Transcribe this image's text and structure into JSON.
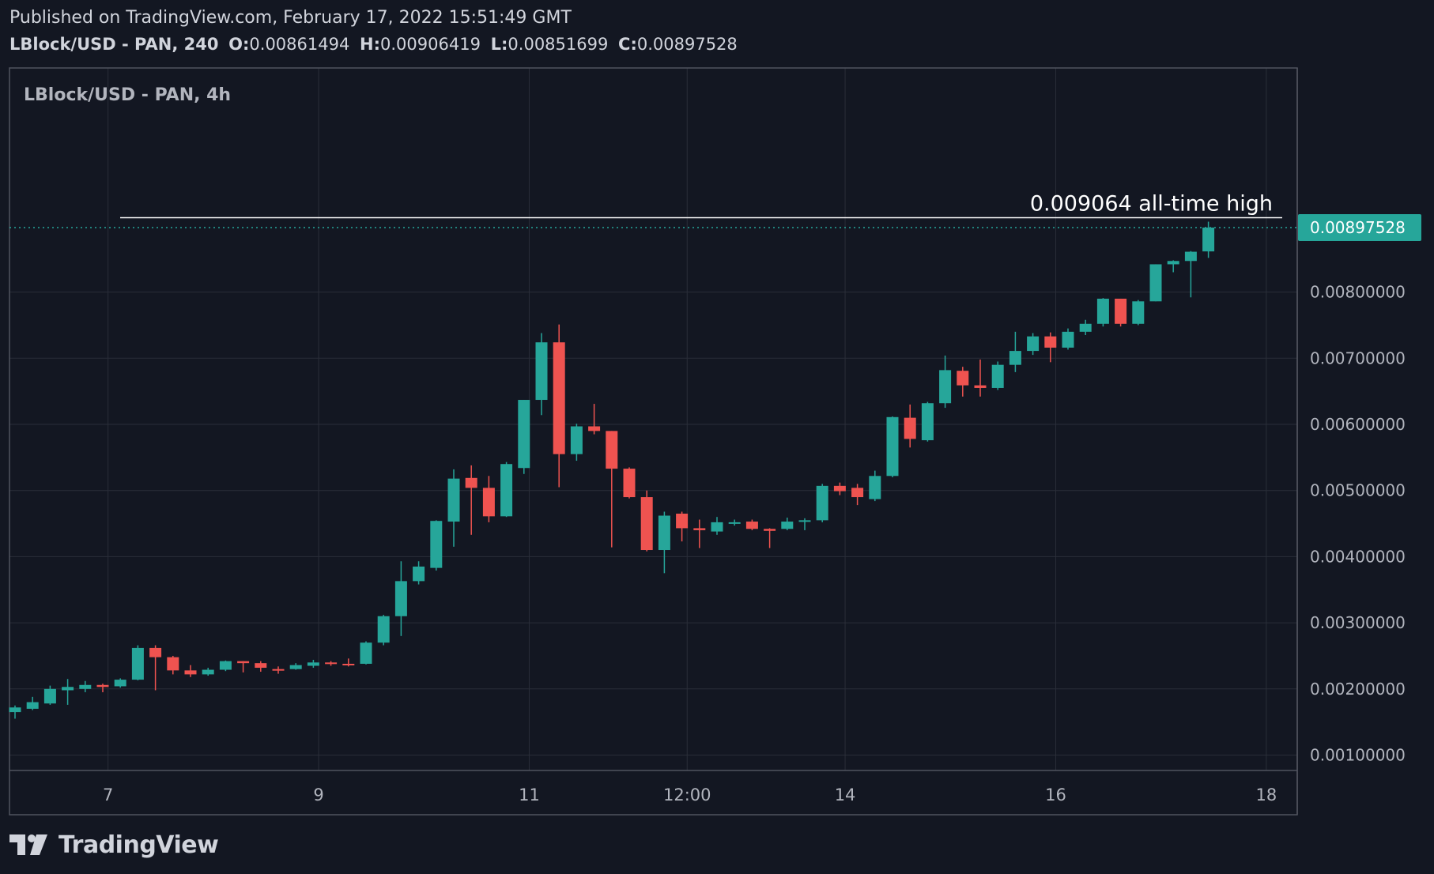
{
  "header": {
    "published": "Published on TradingView.com, February 17, 2022 15:51:49 GMT",
    "symbol_interval": "LBlock/USD - PAN, 240",
    "o_label": "O:",
    "o_value": "0.00861494",
    "h_label": "H:",
    "h_value": "0.00906419",
    "l_label": "L:",
    "l_value": "0.00851699",
    "c_label": "C:",
    "c_value": "0.00897528"
  },
  "brand": {
    "name": "TradingView"
  },
  "colors": {
    "background": "#131722",
    "up": "#26a69a",
    "down": "#ef5350",
    "grid": "#2a2e39",
    "text": "#d1d4dc",
    "axis_text": "#b2b5be"
  },
  "chart_data": {
    "type": "candlestick",
    "title": "LBlock/USD - PAN, 4h",
    "annotation": "0.009064 all-time high",
    "ath_value": 0.009064,
    "last_price": 0.00897528,
    "last_price_label": "0.00897528",
    "ylim": [
      0.0008,
      0.01
    ],
    "y_ticks": [
      {
        "value": 0.008,
        "label": "0.00800000"
      },
      {
        "value": 0.007,
        "label": "0.00700000"
      },
      {
        "value": 0.006,
        "label": "0.00600000"
      },
      {
        "value": 0.005,
        "label": "0.00500000"
      },
      {
        "value": 0.004,
        "label": "0.00400000"
      },
      {
        "value": 0.003,
        "label": "0.00300000"
      },
      {
        "value": 0.002,
        "label": "0.00200000"
      },
      {
        "value": 0.001,
        "label": "0.00100000"
      }
    ],
    "x_ticks": [
      {
        "bar": 5.3,
        "label": "7"
      },
      {
        "bar": 17.3,
        "label": "9"
      },
      {
        "bar": 29.3,
        "label": "11"
      },
      {
        "bar": 38.3,
        "label": "12:00"
      },
      {
        "bar": 47.3,
        "label": "14"
      },
      {
        "bar": 59.3,
        "label": "16"
      },
      {
        "bar": 71.3,
        "label": "18"
      }
    ],
    "candles": [
      {
        "o": 0.00165,
        "h": 0.00175,
        "l": 0.00155,
        "c": 0.00172
      },
      {
        "o": 0.0017,
        "h": 0.00188,
        "l": 0.00168,
        "c": 0.0018
      },
      {
        "o": 0.00178,
        "h": 0.00205,
        "l": 0.00176,
        "c": 0.002
      },
      {
        "o": 0.00198,
        "h": 0.00215,
        "l": 0.00176,
        "c": 0.00203
      },
      {
        "o": 0.002,
        "h": 0.00212,
        "l": 0.00195,
        "c": 0.00206
      },
      {
        "o": 0.00206,
        "h": 0.00208,
        "l": 0.00195,
        "c": 0.00203
      },
      {
        "o": 0.00204,
        "h": 0.00216,
        "l": 0.00202,
        "c": 0.00214
      },
      {
        "o": 0.00214,
        "h": 0.00266,
        "l": 0.00213,
        "c": 0.00262
      },
      {
        "o": 0.00262,
        "h": 0.00266,
        "l": 0.00198,
        "c": 0.00248
      },
      {
        "o": 0.00248,
        "h": 0.0025,
        "l": 0.00222,
        "c": 0.00228
      },
      {
        "o": 0.00228,
        "h": 0.00236,
        "l": 0.00218,
        "c": 0.00222
      },
      {
        "o": 0.00222,
        "h": 0.00232,
        "l": 0.0022,
        "c": 0.00229
      },
      {
        "o": 0.00229,
        "h": 0.00243,
        "l": 0.00227,
        "c": 0.00242
      },
      {
        "o": 0.00242,
        "h": 0.00242,
        "l": 0.00225,
        "c": 0.00239
      },
      {
        "o": 0.00239,
        "h": 0.00242,
        "l": 0.00226,
        "c": 0.00232
      },
      {
        "o": 0.0023,
        "h": 0.00234,
        "l": 0.00223,
        "c": 0.00228
      },
      {
        "o": 0.0023,
        "h": 0.00239,
        "l": 0.00229,
        "c": 0.00236
      },
      {
        "o": 0.00235,
        "h": 0.00244,
        "l": 0.00232,
        "c": 0.0024
      },
      {
        "o": 0.0024,
        "h": 0.00242,
        "l": 0.00235,
        "c": 0.00238
      },
      {
        "o": 0.00238,
        "h": 0.00246,
        "l": 0.00234,
        "c": 0.00237
      },
      {
        "o": 0.00238,
        "h": 0.00272,
        "l": 0.00237,
        "c": 0.0027
      },
      {
        "o": 0.0027,
        "h": 0.00312,
        "l": 0.00266,
        "c": 0.0031
      },
      {
        "o": 0.0031,
        "h": 0.00393,
        "l": 0.0028,
        "c": 0.00363
      },
      {
        "o": 0.00363,
        "h": 0.00393,
        "l": 0.00358,
        "c": 0.00385
      },
      {
        "o": 0.00383,
        "h": 0.00455,
        "l": 0.00379,
        "c": 0.00454
      },
      {
        "o": 0.00453,
        "h": 0.00532,
        "l": 0.00415,
        "c": 0.00518
      },
      {
        "o": 0.00519,
        "h": 0.00538,
        "l": 0.00433,
        "c": 0.00504
      },
      {
        "o": 0.00504,
        "h": 0.00522,
        "l": 0.00452,
        "c": 0.00461
      },
      {
        "o": 0.00461,
        "h": 0.00543,
        "l": 0.0046,
        "c": 0.0054
      },
      {
        "o": 0.00534,
        "h": 0.00637,
        "l": 0.00525,
        "c": 0.00637
      },
      {
        "o": 0.00637,
        "h": 0.00738,
        "l": 0.00614,
        "c": 0.00724
      },
      {
        "o": 0.00724,
        "h": 0.00751,
        "l": 0.00505,
        "c": 0.00555
      },
      {
        "o": 0.00555,
        "h": 0.00601,
        "l": 0.00545,
        "c": 0.00597
      },
      {
        "o": 0.00597,
        "h": 0.00631,
        "l": 0.00585,
        "c": 0.0059
      },
      {
        "o": 0.0059,
        "h": 0.0059,
        "l": 0.00414,
        "c": 0.00533
      },
      {
        "o": 0.00533,
        "h": 0.00535,
        "l": 0.00488,
        "c": 0.0049
      },
      {
        "o": 0.0049,
        "h": 0.005,
        "l": 0.00408,
        "c": 0.0041
      },
      {
        "o": 0.0041,
        "h": 0.00468,
        "l": 0.00375,
        "c": 0.00462
      },
      {
        "o": 0.00465,
        "h": 0.00468,
        "l": 0.00423,
        "c": 0.00443
      },
      {
        "o": 0.00443,
        "h": 0.00456,
        "l": 0.00413,
        "c": 0.0044
      },
      {
        "o": 0.00438,
        "h": 0.0046,
        "l": 0.00433,
        "c": 0.00452
      },
      {
        "o": 0.0045,
        "h": 0.00456,
        "l": 0.00447,
        "c": 0.00452
      },
      {
        "o": 0.00453,
        "h": 0.00456,
        "l": 0.0044,
        "c": 0.00442
      },
      {
        "o": 0.00442,
        "h": 0.00443,
        "l": 0.00413,
        "c": 0.00439
      },
      {
        "o": 0.00442,
        "h": 0.00459,
        "l": 0.0044,
        "c": 0.00453
      },
      {
        "o": 0.00453,
        "h": 0.00458,
        "l": 0.0044,
        "c": 0.00455
      },
      {
        "o": 0.00455,
        "h": 0.0051,
        "l": 0.00452,
        "c": 0.00507
      },
      {
        "o": 0.00507,
        "h": 0.00512,
        "l": 0.00493,
        "c": 0.00499
      },
      {
        "o": 0.00504,
        "h": 0.0051,
        "l": 0.00478,
        "c": 0.0049
      },
      {
        "o": 0.00487,
        "h": 0.0053,
        "l": 0.00484,
        "c": 0.00522
      },
      {
        "o": 0.00522,
        "h": 0.00612,
        "l": 0.0052,
        "c": 0.00611
      },
      {
        "o": 0.0061,
        "h": 0.0063,
        "l": 0.00565,
        "c": 0.00578
      },
      {
        "o": 0.00576,
        "h": 0.00634,
        "l": 0.00574,
        "c": 0.00632
      },
      {
        "o": 0.00632,
        "h": 0.00704,
        "l": 0.00625,
        "c": 0.00682
      },
      {
        "o": 0.00681,
        "h": 0.00687,
        "l": 0.00642,
        "c": 0.00659
      },
      {
        "o": 0.00659,
        "h": 0.00698,
        "l": 0.00642,
        "c": 0.00655
      },
      {
        "o": 0.00655,
        "h": 0.00695,
        "l": 0.00652,
        "c": 0.0069
      },
      {
        "o": 0.0069,
        "h": 0.0074,
        "l": 0.00679,
        "c": 0.00711
      },
      {
        "o": 0.00711,
        "h": 0.00738,
        "l": 0.00705,
        "c": 0.00733
      },
      {
        "o": 0.00733,
        "h": 0.00739,
        "l": 0.00694,
        "c": 0.00716
      },
      {
        "o": 0.00716,
        "h": 0.00745,
        "l": 0.00713,
        "c": 0.0074
      },
      {
        "o": 0.0074,
        "h": 0.00758,
        "l": 0.00735,
        "c": 0.00752
      },
      {
        "o": 0.00752,
        "h": 0.00791,
        "l": 0.00748,
        "c": 0.0079
      },
      {
        "o": 0.0079,
        "h": 0.0079,
        "l": 0.00748,
        "c": 0.00752
      },
      {
        "o": 0.00752,
        "h": 0.00788,
        "l": 0.0075,
        "c": 0.00786
      },
      {
        "o": 0.00786,
        "h": 0.00842,
        "l": 0.00786,
        "c": 0.00842
      },
      {
        "o": 0.00842,
        "h": 0.00848,
        "l": 0.0083,
        "c": 0.00847
      },
      {
        "o": 0.00847,
        "h": 0.00862,
        "l": 0.00792,
        "c": 0.00861
      },
      {
        "o": 0.00861494,
        "h": 0.00906419,
        "l": 0.00851699,
        "c": 0.00897528
      }
    ]
  }
}
